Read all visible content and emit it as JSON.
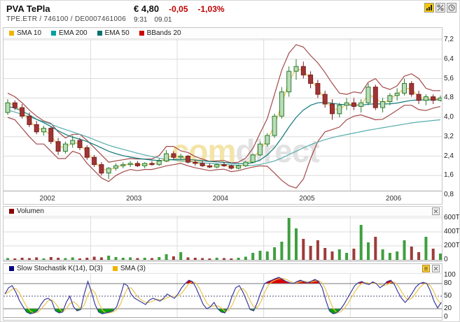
{
  "header": {
    "title": "PVA TePla",
    "instrument_line": "TPE.ETR  /  746100  /  DE0007461006",
    "price": "€ 4,80",
    "change_abs": "-0,05",
    "change_pct": "-1,03%",
    "time": "9:31",
    "date": "09.01"
  },
  "watermark": {
    "part1": ".com",
    "part2": "direct"
  },
  "colors": {
    "negative": "#c00000",
    "grid": "#dcdcdc",
    "axis_line": "#aaaaaa",
    "candle_up_fill": "#b9dcb9",
    "candle_up_stroke": "#2b7b2b",
    "candle_down_fill": "#a03535",
    "candle_down_stroke": "#7a2020",
    "sma10": "#e9c44c",
    "ema200": "#57acac",
    "ema50": "#11797a",
    "bbands": "#a34a4a",
    "vol_up": "#3f9f3f",
    "vol_down": "#9e3b3b",
    "stoch_k": "#3a3a9e",
    "stoch_sma": "#e9c44c",
    "stoch_over": "#dd0000",
    "stoch_under": "#00a400",
    "watermark1": "#f3e4a8",
    "watermark2": "#e2e2e2",
    "year_label": "#333333"
  },
  "chart_data": [
    {
      "type": "candlestick",
      "title": "PVA TePla price chart with overlays",
      "legend": [
        {
          "label": "SMA 10",
          "color": "#f0b400"
        },
        {
          "label": "EMA 200",
          "color": "#00a0a0"
        },
        {
          "label": "EMA 50",
          "color": "#00716e"
        },
        {
          "label": "BBands 20",
          "color": "#cc0000"
        }
      ],
      "x_years": [
        "2002",
        "2003",
        "2004",
        "2005",
        "2006"
      ],
      "y_axis": [
        {
          "label": "7,2",
          "value": 7.2
        },
        {
          "label": "6,4",
          "value": 6.4
        },
        {
          "label": "5,6",
          "value": 5.6
        },
        {
          "label": "4,8",
          "value": 4.8
        },
        {
          "label": "4,0",
          "value": 4.0
        },
        {
          "label": "3,2",
          "value": 3.2
        },
        {
          "label": "2,4",
          "value": 2.4
        },
        {
          "label": "1,6",
          "value": 1.6
        },
        {
          "label": "0,8",
          "value": 0.8
        }
      ],
      "ylim": [
        0.9,
        7.2
      ],
      "ohlc": [
        [
          4.2,
          4.75,
          4.1,
          4.6
        ],
        [
          4.6,
          4.7,
          4.3,
          4.4
        ],
        [
          4.4,
          4.55,
          3.95,
          4.05
        ],
        [
          4.05,
          4.2,
          3.6,
          3.7
        ],
        [
          3.7,
          3.85,
          3.3,
          3.4
        ],
        [
          3.4,
          3.65,
          3.25,
          3.55
        ],
        [
          3.55,
          3.6,
          2.9,
          3.0
        ],
        [
          3.0,
          3.15,
          2.45,
          2.6
        ],
        [
          2.6,
          3.0,
          2.5,
          2.9
        ],
        [
          2.9,
          3.25,
          2.75,
          3.05
        ],
        [
          3.05,
          3.15,
          2.65,
          2.75
        ],
        [
          2.75,
          2.85,
          2.25,
          2.35
        ],
        [
          2.35,
          2.45,
          1.95,
          2.05
        ],
        [
          2.05,
          2.15,
          1.6,
          1.7
        ],
        [
          1.7,
          1.95,
          1.45,
          1.9
        ],
        [
          1.9,
          2.1,
          1.8,
          2.0
        ],
        [
          2.0,
          2.15,
          1.9,
          2.05
        ],
        [
          2.05,
          2.2,
          1.95,
          2.1
        ],
        [
          2.1,
          2.2,
          1.95,
          2.0
        ],
        [
          2.0,
          2.15,
          1.9,
          2.1
        ],
        [
          2.1,
          2.2,
          2.0,
          2.05
        ],
        [
          2.05,
          2.3,
          2.0,
          2.2
        ],
        [
          2.2,
          2.65,
          2.15,
          2.5
        ],
        [
          2.5,
          2.6,
          2.25,
          2.35
        ],
        [
          2.35,
          2.5,
          2.25,
          2.4
        ],
        [
          2.4,
          2.45,
          2.1,
          2.15
        ],
        [
          2.15,
          2.25,
          2.0,
          2.1
        ],
        [
          2.1,
          2.2,
          1.95,
          2.0
        ],
        [
          2.0,
          2.1,
          1.9,
          1.95
        ],
        [
          1.95,
          2.1,
          1.9,
          2.05
        ],
        [
          2.05,
          2.15,
          1.95,
          2.0
        ],
        [
          2.0,
          2.05,
          1.85,
          1.9
        ],
        [
          1.9,
          2.05,
          1.85,
          2.0
        ],
        [
          2.0,
          2.2,
          1.95,
          2.15
        ],
        [
          2.15,
          2.5,
          2.1,
          2.45
        ],
        [
          2.45,
          3.0,
          2.4,
          2.9
        ],
        [
          2.9,
          3.35,
          2.8,
          3.25
        ],
        [
          3.25,
          4.15,
          3.15,
          4.05
        ],
        [
          4.05,
          5.25,
          3.95,
          5.05
        ],
        [
          5.05,
          6.1,
          4.85,
          5.9
        ],
        [
          5.9,
          6.4,
          5.55,
          6.1
        ],
        [
          6.1,
          6.3,
          5.6,
          5.75
        ],
        [
          5.75,
          5.9,
          5.2,
          5.4
        ],
        [
          5.4,
          5.55,
          4.8,
          4.95
        ],
        [
          4.95,
          5.1,
          4.4,
          4.55
        ],
        [
          4.55,
          4.75,
          3.9,
          4.15
        ],
        [
          4.15,
          4.6,
          4.0,
          4.5
        ],
        [
          4.5,
          4.8,
          4.3,
          4.6
        ],
        [
          4.6,
          4.8,
          4.3,
          4.45
        ],
        [
          4.45,
          4.75,
          4.2,
          4.6
        ],
        [
          4.6,
          5.4,
          4.5,
          5.25
        ],
        [
          5.25,
          5.35,
          4.3,
          4.4
        ],
        [
          4.4,
          4.8,
          4.2,
          4.65
        ],
        [
          4.65,
          5.0,
          4.5,
          4.9
        ],
        [
          4.9,
          5.2,
          4.7,
          5.0
        ],
        [
          5.0,
          5.6,
          4.9,
          5.4
        ],
        [
          5.4,
          5.5,
          4.85,
          4.95
        ],
        [
          4.95,
          5.1,
          4.55,
          4.7
        ],
        [
          4.7,
          4.95,
          4.5,
          4.85
        ],
        [
          4.85,
          4.95,
          4.55,
          4.7
        ],
        [
          4.7,
          4.9,
          4.65,
          4.8
        ]
      ],
      "ema200": [
        4.3,
        4.22,
        4.12,
        4.02,
        3.92,
        3.82,
        3.72,
        3.6,
        3.5,
        3.4,
        3.3,
        3.2,
        3.08,
        2.96,
        2.85,
        2.76,
        2.68,
        2.6,
        2.52,
        2.45,
        2.38,
        2.32,
        2.28,
        2.24,
        2.21,
        2.18,
        2.15,
        2.12,
        2.1,
        2.08,
        2.06,
        2.04,
        2.02,
        2.01,
        2.02,
        2.06,
        2.12,
        2.2,
        2.32,
        2.46,
        2.6,
        2.74,
        2.87,
        2.98,
        3.08,
        3.16,
        3.23,
        3.29,
        3.35,
        3.41,
        3.47,
        3.52,
        3.57,
        3.62,
        3.67,
        3.72,
        3.77,
        3.81,
        3.84,
        3.87,
        3.9
      ],
      "ema50": [
        4.45,
        4.38,
        4.26,
        4.1,
        3.92,
        3.78,
        3.62,
        3.45,
        3.3,
        3.18,
        3.1,
        3.0,
        2.88,
        2.74,
        2.6,
        2.5,
        2.42,
        2.36,
        2.31,
        2.27,
        2.24,
        2.22,
        2.24,
        2.26,
        2.27,
        2.26,
        2.24,
        2.21,
        2.18,
        2.16,
        2.14,
        2.11,
        2.09,
        2.09,
        2.13,
        2.24,
        2.45,
        2.75,
        3.15,
        3.6,
        4.0,
        4.3,
        4.5,
        4.6,
        4.62,
        4.58,
        4.54,
        4.52,
        4.5,
        4.5,
        4.54,
        4.56,
        4.55,
        4.56,
        4.59,
        4.65,
        4.7,
        4.72,
        4.72,
        4.72,
        4.73
      ],
      "bb_upper": [
        5.0,
        4.85,
        4.6,
        4.3,
        4.05,
        3.85,
        3.75,
        3.4,
        3.15,
        3.3,
        3.3,
        3.05,
        2.75,
        2.45,
        2.15,
        2.2,
        2.25,
        2.3,
        2.28,
        2.28,
        2.28,
        2.42,
        2.8,
        2.8,
        2.62,
        2.55,
        2.38,
        2.28,
        2.18,
        2.2,
        2.22,
        2.12,
        2.15,
        2.32,
        2.72,
        3.35,
        3.95,
        4.95,
        5.95,
        6.65,
        7.0,
        6.9,
        6.55,
        6.25,
        5.85,
        5.4,
        5.0,
        4.95,
        5.05,
        5.0,
        5.45,
        5.6,
        5.25,
        5.15,
        5.3,
        5.7,
        5.8,
        5.6,
        5.2,
        5.1,
        5.1
      ],
      "bb_lower": [
        4.0,
        3.9,
        3.55,
        3.2,
        2.9,
        2.9,
        2.6,
        2.3,
        2.3,
        2.6,
        2.5,
        2.1,
        1.8,
        1.5,
        1.35,
        1.6,
        1.75,
        1.85,
        1.8,
        1.85,
        1.85,
        1.92,
        2.0,
        2.05,
        2.1,
        2.0,
        1.92,
        1.86,
        1.8,
        1.84,
        1.86,
        1.76,
        1.8,
        1.88,
        1.95,
        2.0,
        1.98,
        1.7,
        1.4,
        1.18,
        1.08,
        1.45,
        2.3,
        3.0,
        3.4,
        3.5,
        3.6,
        3.9,
        4.05,
        4.1,
        4.0,
        3.9,
        3.92,
        4.1,
        4.3,
        4.5,
        4.5,
        4.32,
        4.28,
        4.38,
        4.45
      ]
    },
    {
      "type": "bar",
      "title": "Volumen",
      "legend": [
        {
          "label": "Volumen",
          "color": "#8b0000"
        }
      ],
      "y_axis": [
        {
          "label": "600T",
          "value": 600
        },
        {
          "label": "400T",
          "value": 400
        },
        {
          "label": "200T",
          "value": 200
        },
        {
          "label": "0",
          "value": 0
        }
      ],
      "ylim": [
        0,
        620
      ],
      "values": [
        25,
        20,
        30,
        25,
        35,
        20,
        40,
        30,
        25,
        35,
        20,
        30,
        45,
        35,
        60,
        40,
        30,
        35,
        25,
        30,
        25,
        40,
        80,
        50,
        110,
        35,
        30,
        25,
        20,
        30,
        25,
        20,
        30,
        45,
        100,
        130,
        120,
        180,
        260,
        600,
        450,
        300,
        200,
        280,
        170,
        120,
        150,
        100,
        160,
        500,
        250,
        330,
        150,
        100,
        120,
        280,
        190,
        110,
        330,
        160,
        90
      ]
    },
    {
      "type": "line",
      "title": "Slow Stochastik",
      "legend": [
        {
          "label": "Slow Stochastik K(14), D(3)",
          "color": "#000080"
        },
        {
          "label": "SMA (3)",
          "color": "#f0b400"
        }
      ],
      "y_axis": [
        {
          "label": "100",
          "value": 100
        },
        {
          "label": "80",
          "value": 80
        },
        {
          "label": "50",
          "value": 50
        },
        {
          "label": "20",
          "value": 20
        },
        {
          "label": "0",
          "value": 0
        }
      ],
      "overbought": 80,
      "oversold": 20,
      "midline": 50,
      "ylim": [
        0,
        100
      ],
      "k_values": [
        55,
        70,
        75,
        60,
        40,
        25,
        12,
        8,
        10,
        15,
        30,
        42,
        45,
        38,
        15,
        10,
        12,
        35,
        50,
        25,
        15,
        18,
        55,
        85,
        60,
        30,
        12,
        8,
        10,
        12,
        15,
        25,
        50,
        80,
        75,
        55,
        45,
        40,
        35,
        30,
        40,
        45,
        42,
        38,
        45,
        55,
        50,
        45,
        55,
        70,
        80,
        88,
        85,
        70,
        50,
        30,
        20,
        25,
        35,
        20,
        12,
        10,
        25,
        50,
        70,
        75,
        60,
        40,
        18,
        15,
        35,
        60,
        80,
        85,
        88,
        92,
        95,
        90,
        85,
        82,
        80,
        85,
        88,
        84,
        82,
        86,
        90,
        85,
        70,
        40,
        15,
        8,
        10,
        18,
        30,
        45,
        60,
        75,
        82,
        85,
        80,
        78,
        84,
        80,
        70,
        76,
        85,
        88,
        78,
        60,
        45,
        35,
        45,
        58,
        72,
        80,
        83,
        80,
        62,
        38,
        22,
        35
      ]
    }
  ]
}
